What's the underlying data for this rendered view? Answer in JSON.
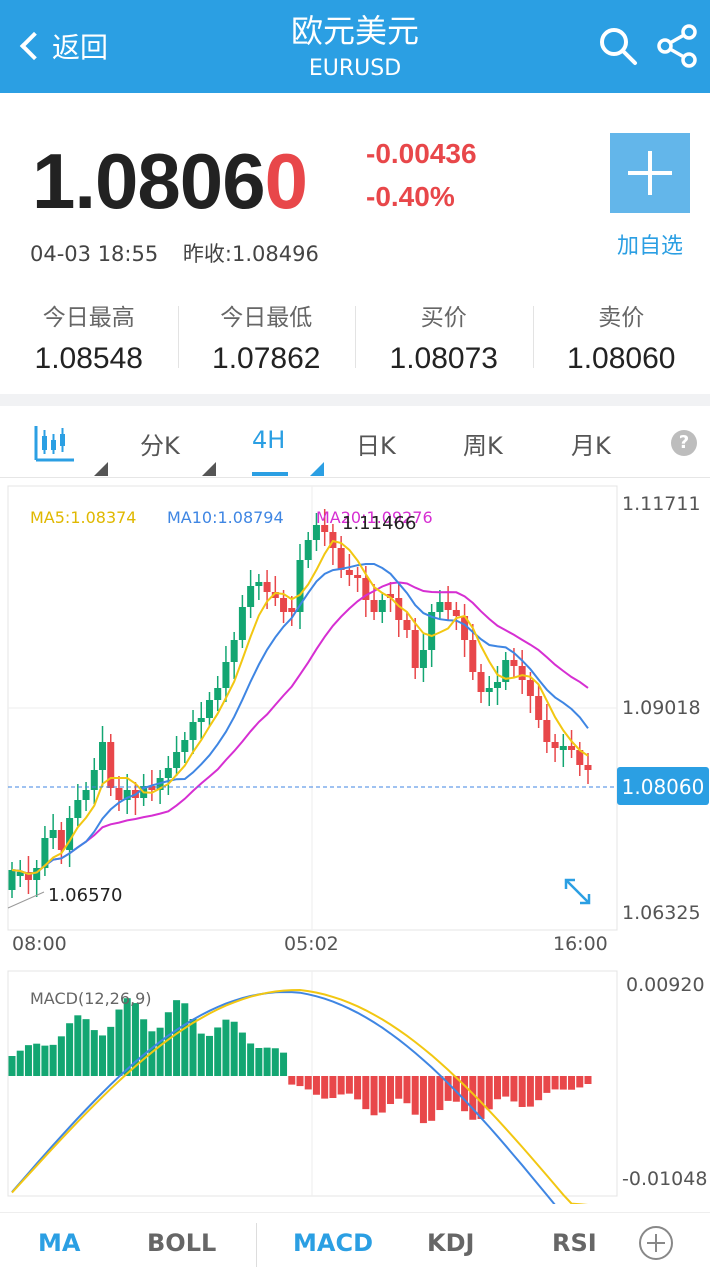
{
  "header": {
    "back_label": "返回",
    "title": "欧元美元",
    "subtitle": "EURUSD"
  },
  "quote": {
    "price_main": "1.0806",
    "price_last": "0",
    "change": "-0.00436",
    "change_pct": "-0.40%",
    "time": "04-03 18:55",
    "prev_close": "昨收:1.08496",
    "add_label": "加自选"
  },
  "stats": [
    {
      "label": "今日最高",
      "value": "1.08548"
    },
    {
      "label": "今日最低",
      "value": "1.07862"
    },
    {
      "label": "买价",
      "value": "1.08073"
    },
    {
      "label": "卖价",
      "value": "1.08060"
    }
  ],
  "tabs": [
    "分K",
    "4H",
    "日K",
    "周K",
    "月K"
  ],
  "active_tab": "4H",
  "chart": {
    "legend": {
      "ma5": "MA5:1.08374",
      "ma10": "MA10:1.08794",
      "ma20": "MA20:1.09276"
    },
    "y_labels": [
      "1.11711",
      "1.09018",
      "1.06325"
    ],
    "current_price": "1.08060",
    "high_label": "1.11466",
    "low_label": "1.06570",
    "x_labels": [
      "08:00",
      "05:02",
      "16:00"
    ],
    "macd_title": "MACD(12,26,9)",
    "macd_y_labels": [
      "0.00920",
      "-0.01048"
    ]
  },
  "colors": {
    "up": "#13a672",
    "down": "#e8474a",
    "ma5": "#f2c712",
    "ma10": "#3f86e3",
    "ma20": "#d62fd2",
    "accent": "#2b9fe3"
  },
  "bottom_tabs": [
    "MA",
    "BOLL",
    "MACD",
    "KDJ",
    "RSI"
  ],
  "icons": [
    "chevron-left-icon",
    "search-icon",
    "share-icon",
    "plus-icon",
    "candlestick-icon",
    "help-icon",
    "expand-icon",
    "add-circle-icon"
  ]
}
